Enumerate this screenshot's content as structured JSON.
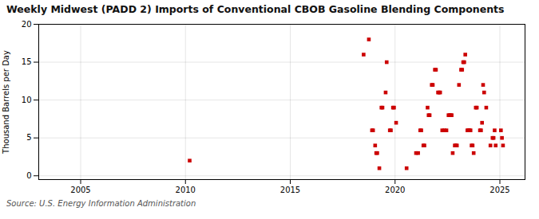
{
  "chart_data": {
    "type": "scatter",
    "title": "Weekly Midwest (PADD 2) Imports of Conventional CBOB Gasoline Blending Components",
    "ylabel": "Thousand Barrels per Day",
    "annotations": [
      "Source: U.S. Energy Information Administration"
    ],
    "color": "#cc0000",
    "marker": "square",
    "grid": true,
    "xlim": [
      2003.0,
      2026.2
    ],
    "ylim": [
      -0.5,
      20
    ],
    "xticks": [
      2005,
      2010,
      2015,
      2020,
      2025
    ],
    "yticks": [
      0,
      5,
      10,
      15,
      20
    ],
    "x": [
      2010.2,
      2018.5,
      2018.75,
      2018.9,
      2018.95,
      2019.05,
      2019.1,
      2019.15,
      2019.25,
      2019.35,
      2019.4,
      2019.55,
      2019.6,
      2019.75,
      2019.8,
      2019.9,
      2019.95,
      2020.05,
      2020.55,
      2021.0,
      2021.1,
      2021.2,
      2021.25,
      2021.35,
      2021.4,
      2021.55,
      2021.6,
      2021.65,
      2021.75,
      2021.8,
      2021.9,
      2021.95,
      2022.05,
      2022.1,
      2022.15,
      2022.25,
      2022.35,
      2022.45,
      2022.55,
      2022.6,
      2022.65,
      2022.7,
      2022.75,
      2022.85,
      2022.9,
      2022.95,
      2023.05,
      2023.15,
      2023.2,
      2023.25,
      2023.3,
      2023.35,
      2023.45,
      2023.5,
      2023.55,
      2023.6,
      2023.65,
      2023.7,
      2023.75,
      2023.85,
      2023.9,
      2024.05,
      2024.1,
      2024.15,
      2024.2,
      2024.25,
      2024.35,
      2024.55,
      2024.65,
      2024.7,
      2024.75,
      2024.8,
      2025.05,
      2025.1,
      2025.15
    ],
    "values": [
      2.0,
      16.0,
      18.0,
      6.0,
      6.0,
      4.0,
      3.0,
      3.0,
      1.0,
      9.0,
      9.0,
      11.0,
      15.0,
      6.0,
      6.0,
      9.0,
      9.0,
      7.0,
      1.0,
      3.0,
      3.0,
      6.0,
      6.0,
      4.0,
      4.0,
      9.0,
      8.0,
      8.0,
      12.0,
      12.0,
      14.0,
      14.0,
      11.0,
      11.0,
      11.0,
      6.0,
      6.0,
      6.0,
      8.0,
      8.0,
      8.0,
      8.0,
      3.0,
      4.0,
      4.0,
      4.0,
      12.0,
      14.0,
      14.0,
      15.0,
      15.0,
      16.0,
      6.0,
      6.0,
      6.0,
      6.0,
      4.0,
      4.0,
      3.0,
      9.0,
      9.0,
      6.0,
      6.0,
      7.0,
      12.0,
      11.0,
      9.0,
      4.0,
      5.0,
      5.0,
      6.0,
      4.0,
      6.0,
      5.0,
      4.0
    ]
  }
}
